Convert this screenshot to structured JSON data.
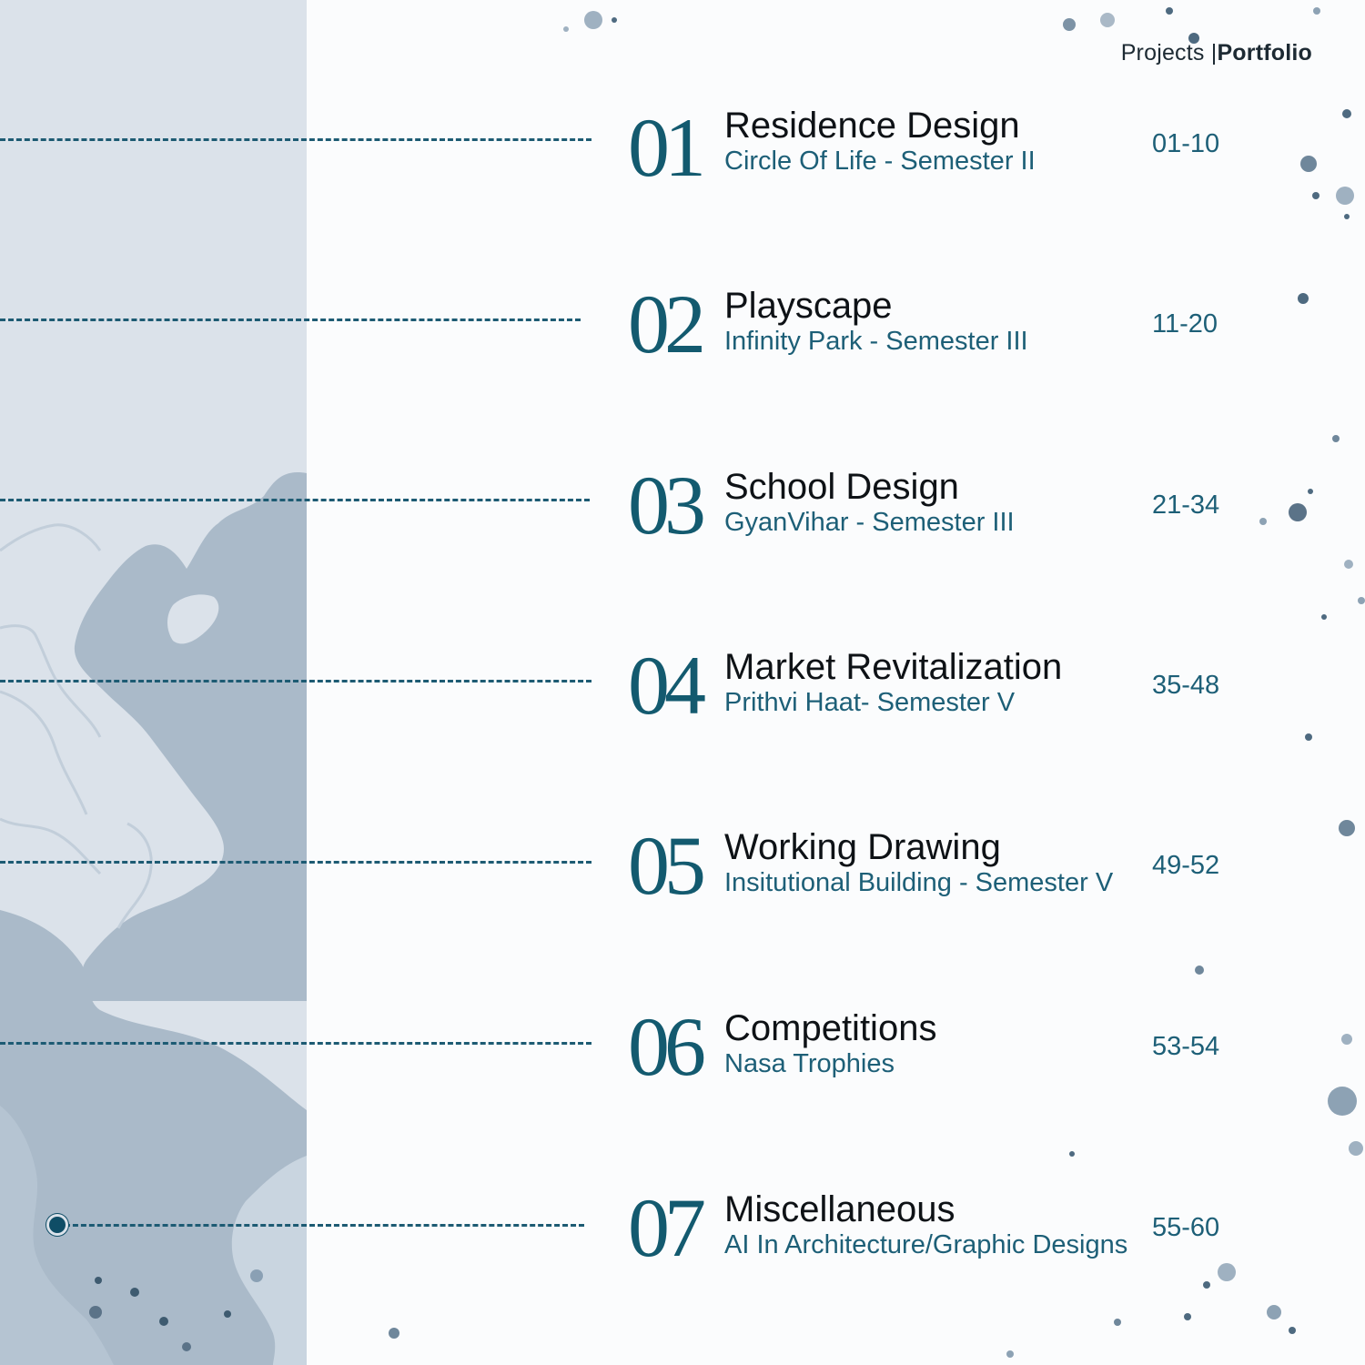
{
  "header": {
    "section": "Projects |",
    "name": "Portfolio"
  },
  "colors": {
    "accent": "#135a6f",
    "panel": "#dbe2ea",
    "land": "#aabac9"
  },
  "projects": [
    {
      "num": "01",
      "title": "Residence Design",
      "subtitle": "Circle Of Life - Semester II",
      "pages": "01-10"
    },
    {
      "num": "02",
      "title": "Playscape",
      "subtitle": "Infinity Park - Semester III",
      "pages": "11-20"
    },
    {
      "num": "03",
      "title": "School Design",
      "subtitle": "GyanVihar - Semester III",
      "pages": "21-34"
    },
    {
      "num": "04",
      "title": "Market Revitalization",
      "subtitle": "Prithvi Haat- Semester V",
      "pages": "35-48"
    },
    {
      "num": "05",
      "title": "Working Drawing",
      "subtitle": "Insitutional Building - Semester V",
      "pages": "49-52"
    },
    {
      "num": "06",
      "title": "Competitions",
      "subtitle": "Nasa Trophies",
      "pages": "53-54"
    },
    {
      "num": "07",
      "title": "Miscellaneous",
      "subtitle": "AI In Architecture/Graphic Designs",
      "pages": "55-60"
    }
  ]
}
